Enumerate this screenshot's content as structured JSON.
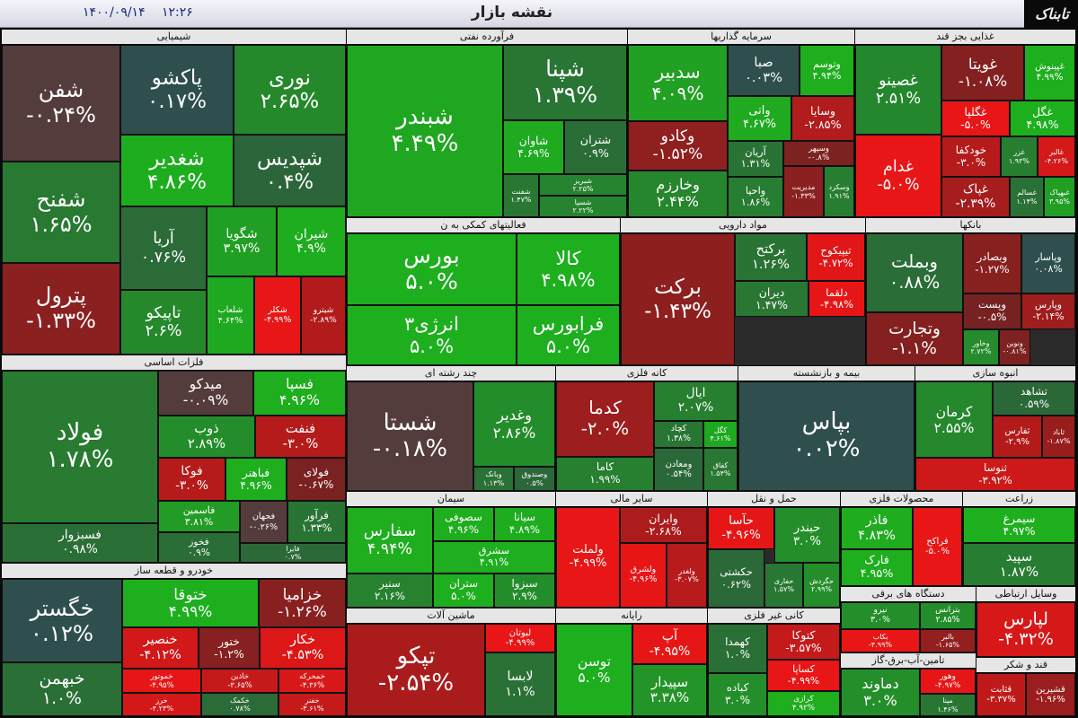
{
  "header": {
    "title": "نقشه بازار",
    "date": "۱۴۰۰/۰۹/۱۴",
    "time": "۱۲:۲۶"
  },
  "logo": "تابناک",
  "sectors": [
    {
      "title": "شیمیایی",
      "tiles": [
        {
          "name": "شفن",
          "change": "-۰.۲۴%"
        },
        {
          "name": "پاکشو",
          "change": "۰.۱۷%"
        },
        {
          "name": "نوری",
          "change": "۲.۶۵%"
        },
        {
          "name": "شپدیس",
          "change": "۰.۴%"
        },
        {
          "name": "شغدیر",
          "change": "۴.۸۶%"
        },
        {
          "name": "شفنح",
          "change": "۱.۶۵%"
        },
        {
          "name": "آریا",
          "change": "۰.۷۶%"
        },
        {
          "name": "شگویا",
          "change": "۳.۹۷%"
        },
        {
          "name": "شیران",
          "change": "۴.۹%"
        },
        {
          "name": "پترول",
          "change": "-۱.۳۳%"
        },
        {
          "name": "تاپیکو",
          "change": "۲.۶%"
        },
        {
          "name": "شلعاب",
          "change": "۴.۶۴%"
        },
        {
          "name": "شکلر",
          "change": "-۴.۹۹%"
        },
        {
          "name": "شیترو",
          "change": "-۲.۸۹%"
        }
      ]
    },
    {
      "title": "فرآورده نفتی",
      "tiles": [
        {
          "name": "شبندر",
          "change": "۴.۴۹%"
        },
        {
          "name": "شپنا",
          "change": "۱.۳۹%"
        },
        {
          "name": "شاوان",
          "change": "۴.۶۹%"
        },
        {
          "name": "شتران",
          "change": "۰.۹%"
        },
        {
          "name": "شفنت",
          "change": "۱.۴۷%"
        },
        {
          "name": "شبریز",
          "change": "۲.۲۵%"
        },
        {
          "name": "شسپا",
          "change": "۲.۲۲%"
        }
      ]
    },
    {
      "title": "سرمایه گذاریها",
      "tiles": [
        {
          "name": "سدبیر",
          "change": "۴.۰۹%"
        },
        {
          "name": "صبا",
          "change": "۰.۰۳%"
        },
        {
          "name": "وتوسم",
          "change": "۴.۹۴%"
        },
        {
          "name": "واتی",
          "change": "۴.۶۷%"
        },
        {
          "name": "وسایا",
          "change": "-۲.۸۵%"
        },
        {
          "name": "وکادو",
          "change": "-۱.۵۲%"
        },
        {
          "name": "آریان",
          "change": "۱.۳۱%"
        },
        {
          "name": "وسپهر",
          "change": "-۰.۸%"
        },
        {
          "name": "وخارزم",
          "change": "۲.۴۴%"
        },
        {
          "name": "واحیا",
          "change": "۱.۸۶%"
        },
        {
          "name": "مدیریت",
          "change": "-۱.۳۳%"
        },
        {
          "name": "وسکرد",
          "change": "۱.۹۱%"
        }
      ]
    },
    {
      "title": "غذایی بجز قند",
      "tiles": [
        {
          "name": "غصینو",
          "change": "۲.۵۱%"
        },
        {
          "name": "غویتا",
          "change": "-۱.۰۸%"
        },
        {
          "name": "غپینوش",
          "change": "۴.۹۹%"
        },
        {
          "name": "غگلپا",
          "change": "-۵.۰%"
        },
        {
          "name": "غگل",
          "change": "۴.۹۸%"
        },
        {
          "name": "غدام",
          "change": "-۵.۰%"
        },
        {
          "name": "خودکفا",
          "change": "-۳.۰%"
        },
        {
          "name": "غزر",
          "change": "۱.۹۳%"
        },
        {
          "name": "غالبر",
          "change": "-۴.۲۶%"
        },
        {
          "name": "غپاک",
          "change": "-۲.۳۹%"
        },
        {
          "name": "غسالم",
          "change": "۱.۱۴%"
        },
        {
          "name": "غبهپاک",
          "change": "۳.۹۵%"
        }
      ]
    },
    {
      "title": "فعالیتهای کمکی به ن",
      "tiles": [
        {
          "name": "بورس",
          "change": "۵.۰%"
        },
        {
          "name": "کالا",
          "change": "۴.۹۸%"
        },
        {
          "name": "انرژی۳",
          "change": "۵.۰%"
        },
        {
          "name": "فرابورس",
          "change": "۵.۰%"
        }
      ]
    },
    {
      "title": "مواد دارویی",
      "tiles": [
        {
          "name": "برکت",
          "change": "-۱.۴۳%"
        },
        {
          "name": "برکتح",
          "change": "۱.۲۶%"
        },
        {
          "name": "تیپیکوح",
          "change": "-۴.۷۲%"
        },
        {
          "name": "دیران",
          "change": "۱.۴۷%"
        },
        {
          "name": "دلقما",
          "change": "-۴.۹۸%"
        }
      ]
    },
    {
      "title": "بانکها",
      "tiles": [
        {
          "name": "وبملت",
          "change": "۰.۸۸%"
        },
        {
          "name": "وبصادر",
          "change": "-۱.۲۷%"
        },
        {
          "name": "وپاسار",
          "change": "۰.۰۸%"
        },
        {
          "name": "وپست",
          "change": "-۰.۵%"
        },
        {
          "name": "وپارس",
          "change": "-۲.۱۴%"
        },
        {
          "name": "وتجارت",
          "change": "-۱.۱%"
        },
        {
          "name": "وخاور",
          "change": "۲.۷۲%"
        },
        {
          "name": "ونوین",
          "change": "-۰.۸۱%"
        }
      ]
    },
    {
      "title": "فلزات اساسی",
      "tiles": [
        {
          "name": "فولاد",
          "change": "۱.۷۸%"
        },
        {
          "name": "میدکو",
          "change": "-۰.۰۹%"
        },
        {
          "name": "فسپا",
          "change": "۴.۹۶%"
        },
        {
          "name": "ذوب",
          "change": "۲.۸۹%"
        },
        {
          "name": "فنفت",
          "change": "-۳.۰%"
        },
        {
          "name": "فوکا",
          "change": "-۳.۰%"
        },
        {
          "name": "فباهنر",
          "change": "۴.۹۶%"
        },
        {
          "name": "فولای",
          "change": "-۰.۶۷%"
        },
        {
          "name": "فسبزوار",
          "change": "۰.۹۸%"
        },
        {
          "name": "فاسمین",
          "change": "۳.۸۱%"
        },
        {
          "name": "فخوز",
          "change": "۰.۹%"
        },
        {
          "name": "فجهان",
          "change": "-۰.۲۶%"
        },
        {
          "name": "فرآور",
          "change": "۱.۳۳%"
        },
        {
          "name": "فایرا",
          "change": "۰.۷%"
        }
      ]
    },
    {
      "title": "خودرو و قطعه ساز",
      "tiles": [
        {
          "name": "خگستر",
          "change": "۰.۱۲%"
        },
        {
          "name": "خبهمن",
          "change": "۱.۰%"
        },
        {
          "name": "ختوقا",
          "change": "۴.۹۹%"
        },
        {
          "name": "خزامیا",
          "change": "-۱.۲۶%"
        },
        {
          "name": "خنصیر",
          "change": "-۴.۱۲%"
        },
        {
          "name": "ختور",
          "change": "-۱.۲%"
        },
        {
          "name": "خکار",
          "change": "-۴.۵۳%"
        },
        {
          "name": "خموتور",
          "change": "-۴.۹۵%"
        },
        {
          "name": "خاذین",
          "change": "-۳.۶۵%"
        },
        {
          "name": "خمحرکه",
          "change": "-۴.۳۶%"
        },
        {
          "name": "خرز",
          "change": "-۴.۲۳%"
        },
        {
          "name": "خکمک",
          "change": "۰.۷۸%"
        },
        {
          "name": "خفنر",
          "change": "-۳.۶۱%"
        }
      ]
    },
    {
      "title": "چند رشته ای",
      "tiles": [
        {
          "name": "شستا",
          "change": "-۰.۱۸%"
        },
        {
          "name": "وغدیر",
          "change": "۲.۸۶%"
        },
        {
          "name": "وبانک",
          "change": "۱.۱۳%"
        },
        {
          "name": "وصندوق",
          "change": "۰.۵%"
        }
      ]
    },
    {
      "title": "کانه فلزی",
      "tiles": [
        {
          "name": "کدما",
          "change": "-۲.۰%"
        },
        {
          "name": "ایال",
          "change": "۲.۰۷%"
        },
        {
          "name": "کچاد",
          "change": "۱.۳۸%"
        },
        {
          "name": "کگل",
          "change": "۴.۶۱%"
        },
        {
          "name": "کاما",
          "change": "۱.۹۹%"
        },
        {
          "name": "ومعادن",
          "change": "۰.۵۴%"
        },
        {
          "name": "کفاق",
          "change": "۱.۵۴%"
        }
      ]
    },
    {
      "title": "بیمه و بازنشسته",
      "tiles": [
        {
          "name": "بپاس",
          "change": "۰.۰۲%"
        }
      ]
    },
    {
      "title": "انبوه سازی",
      "tiles": [
        {
          "name": "تشاهد",
          "change": "۰.۵۹%"
        },
        {
          "name": "کرمان",
          "change": "۲.۵۵%"
        },
        {
          "name": "ثفارس",
          "change": "-۲.۹%"
        },
        {
          "name": "ثاباد",
          "change": "-۱.۸۷%"
        },
        {
          "name": "ثنوسا",
          "change": "-۳.۹۲%"
        }
      ]
    },
    {
      "title": "سیمان",
      "tiles": [
        {
          "name": "سفارس",
          "change": "۴.۹۴%"
        },
        {
          "name": "سصوفی",
          "change": "۴.۹۶%"
        },
        {
          "name": "سیانا",
          "change": "۴.۸۹%"
        },
        {
          "name": "سشرق",
          "change": "۴.۹۱%"
        },
        {
          "name": "سنیر",
          "change": "۲.۱۶%"
        },
        {
          "name": "ستران",
          "change": "۵.۰%"
        },
        {
          "name": "سبزوا",
          "change": "۲.۹%"
        }
      ]
    },
    {
      "title": "سایر مالی",
      "tiles": [
        {
          "name": "ولملت",
          "change": "-۴.۹۹%"
        },
        {
          "name": "وایران",
          "change": "-۲.۶۸%"
        },
        {
          "name": "ولشرق",
          "change": "-۴.۹۶%"
        },
        {
          "name": "ولغدر",
          "change": "-۳.۰۷%"
        }
      ]
    },
    {
      "title": "حمل و نقل",
      "tiles": [
        {
          "name": "حآسا",
          "change": "-۴.۹۶%"
        },
        {
          "name": "حبندر",
          "change": "۳.۰%"
        },
        {
          "name": "حکشتی",
          "change": "۰.۶۲%"
        },
        {
          "name": "حفاری",
          "change": "۱.۵۷%"
        },
        {
          "name": "حگردش",
          "change": "۲.۹۹%"
        }
      ]
    },
    {
      "title": "محصولات فلزی",
      "tiles": [
        {
          "name": "فاذر",
          "change": "۴.۸۳%"
        },
        {
          "name": "فراکح",
          "change": "-۵.۰%"
        },
        {
          "name": "فارک",
          "change": "۴.۹۵%"
        }
      ]
    },
    {
      "title": "زراعت",
      "tiles": [
        {
          "name": "سیمرغ",
          "change": "۴.۹۷%"
        },
        {
          "name": "سپید",
          "change": "۱.۸۷%"
        }
      ]
    },
    {
      "title": "ماشین آلات",
      "tiles": [
        {
          "name": "تپکو",
          "change": "-۲.۵۴%"
        },
        {
          "name": "لبوتان",
          "change": "-۴.۹۹%"
        },
        {
          "name": "لابسا",
          "change": "۱.۱%"
        }
      ]
    },
    {
      "title": "رایانه",
      "tiles": [
        {
          "name": "توسن",
          "change": "۵.۰%"
        },
        {
          "name": "آپ",
          "change": "-۴.۹۵%"
        },
        {
          "name": "سپیدار",
          "change": "۳.۳۸%"
        }
      ]
    },
    {
      "title": "کانی غیر فلزی",
      "tiles": [
        {
          "name": "کهمدا",
          "change": "۱.۰%"
        },
        {
          "name": "کتوکا",
          "change": "-۳.۵۷%"
        },
        {
          "name": "کساپا",
          "change": "-۴.۹۹%"
        },
        {
          "name": "کباده",
          "change": "۳.۰%"
        },
        {
          "name": "کرازی",
          "change": "۴.۹۲%"
        }
      ]
    },
    {
      "title": "دستگاه های برقی",
      "tiles": [
        {
          "name": "نیرو",
          "change": "۳.۰%"
        },
        {
          "name": "بترانس",
          "change": "۲.۸۵%"
        },
        {
          "name": "بکاب",
          "change": "-۴.۹۹%"
        },
        {
          "name": "بالبر",
          "change": "-۱.۶۵%"
        }
      ]
    },
    {
      "title": "وسایل ارتباطی",
      "tiles": [
        {
          "name": "لپارس",
          "change": "-۴.۳۲%"
        }
      ]
    },
    {
      "title": "تامین-آب-برق-گاز",
      "tiles": [
        {
          "name": "دماوند",
          "change": "۳.۰%"
        },
        {
          "name": "وهور",
          "change": "-۴.۹۷%"
        },
        {
          "name": "مپنا",
          "change": "۱.۴۶%"
        }
      ]
    },
    {
      "title": "قند و شکر",
      "tiles": [
        {
          "name": "قثابت",
          "change": "-۳.۳۷%"
        },
        {
          "name": "قشیرین",
          "change": "-۱.۹۶%"
        }
      ]
    }
  ]
}
